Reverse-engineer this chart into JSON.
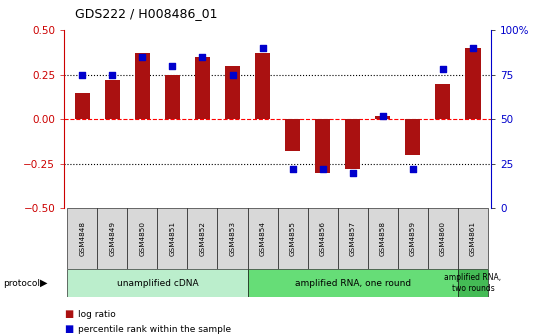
{
  "title": "GDS222 / H008486_01",
  "samples": [
    "GSM4848",
    "GSM4849",
    "GSM4850",
    "GSM4851",
    "GSM4852",
    "GSM4853",
    "GSM4854",
    "GSM4855",
    "GSM4856",
    "GSM4857",
    "GSM4858",
    "GSM4859",
    "GSM4860",
    "GSM4861"
  ],
  "log_ratio": [
    0.15,
    0.22,
    0.37,
    0.25,
    0.35,
    0.3,
    0.37,
    -0.18,
    -0.3,
    -0.28,
    0.02,
    -0.2,
    0.2,
    0.4
  ],
  "percentile": [
    75,
    75,
    85,
    80,
    85,
    75,
    90,
    22,
    22,
    20,
    52,
    22,
    78,
    90
  ],
  "ylim_left": [
    -0.5,
    0.5
  ],
  "ylim_right": [
    0,
    100
  ],
  "yticks_left": [
    -0.5,
    -0.25,
    0.0,
    0.25,
    0.5
  ],
  "yticks_right": [
    0,
    25,
    50,
    75,
    100
  ],
  "bar_color": "#AA1111",
  "dot_color": "#0000CC",
  "bar_width": 0.5,
  "dot_size": 25,
  "tick_label_color_left": "#CC0000",
  "tick_label_color_right": "#0000CC",
  "background_color": "#ffffff",
  "group_colors": [
    "#BBEECC",
    "#66DD77",
    "#44BB55"
  ],
  "group_labels": [
    "unamplified cDNA",
    "amplified RNA, one round",
    "amplified RNA,\ntwo rounds"
  ],
  "group_starts": [
    0,
    6,
    13
  ],
  "group_ends": [
    5,
    12,
    13
  ]
}
